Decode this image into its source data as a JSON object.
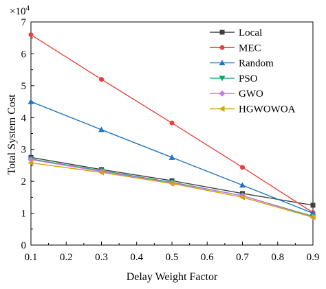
{
  "chart_data": {
    "type": "line",
    "title": "",
    "xlabel": "Delay Weight Factor",
    "ylabel": "Total System Cost",
    "y_multiplier_label": "×10",
    "y_multiplier_exponent": "4",
    "xlim": [
      0.1,
      0.9
    ],
    "ylim": [
      0,
      7
    ],
    "xticks": [
      "0.1",
      "0.2",
      "0.3",
      "0.4",
      "0.5",
      "0.6",
      "0.7",
      "0.8",
      "0.9"
    ],
    "yticks": [
      "0",
      "1",
      "2",
      "3",
      "4",
      "5",
      "6",
      "7"
    ],
    "grid": false,
    "legend_position": "top-right",
    "x": [
      0.1,
      0.3,
      0.5,
      0.7,
      0.9
    ],
    "series": [
      {
        "name": "Local",
        "color": "#404040",
        "marker": "square",
        "values": [
          2.75,
          2.37,
          2.02,
          1.62,
          1.25
        ]
      },
      {
        "name": "MEC",
        "color": "#e8403a",
        "marker": "circle",
        "values": [
          6.6,
          5.2,
          3.83,
          2.44,
          1.02
        ]
      },
      {
        "name": "Random",
        "color": "#1f77c4",
        "marker": "triangle-up",
        "values": [
          4.5,
          3.62,
          2.75,
          1.88,
          1.0
        ]
      },
      {
        "name": "PSO",
        "color": "#0ea86a",
        "marker": "triangle-down",
        "values": [
          2.7,
          2.33,
          1.97,
          1.55,
          0.9
        ]
      },
      {
        "name": "GWO",
        "color": "#c77be8",
        "marker": "diamond",
        "values": [
          2.68,
          2.31,
          1.95,
          1.55,
          0.88
        ]
      },
      {
        "name": "HGWOWOA",
        "color": "#d9a00f",
        "marker": "triangle-left",
        "values": [
          2.58,
          2.28,
          1.93,
          1.5,
          0.87
        ]
      }
    ]
  }
}
